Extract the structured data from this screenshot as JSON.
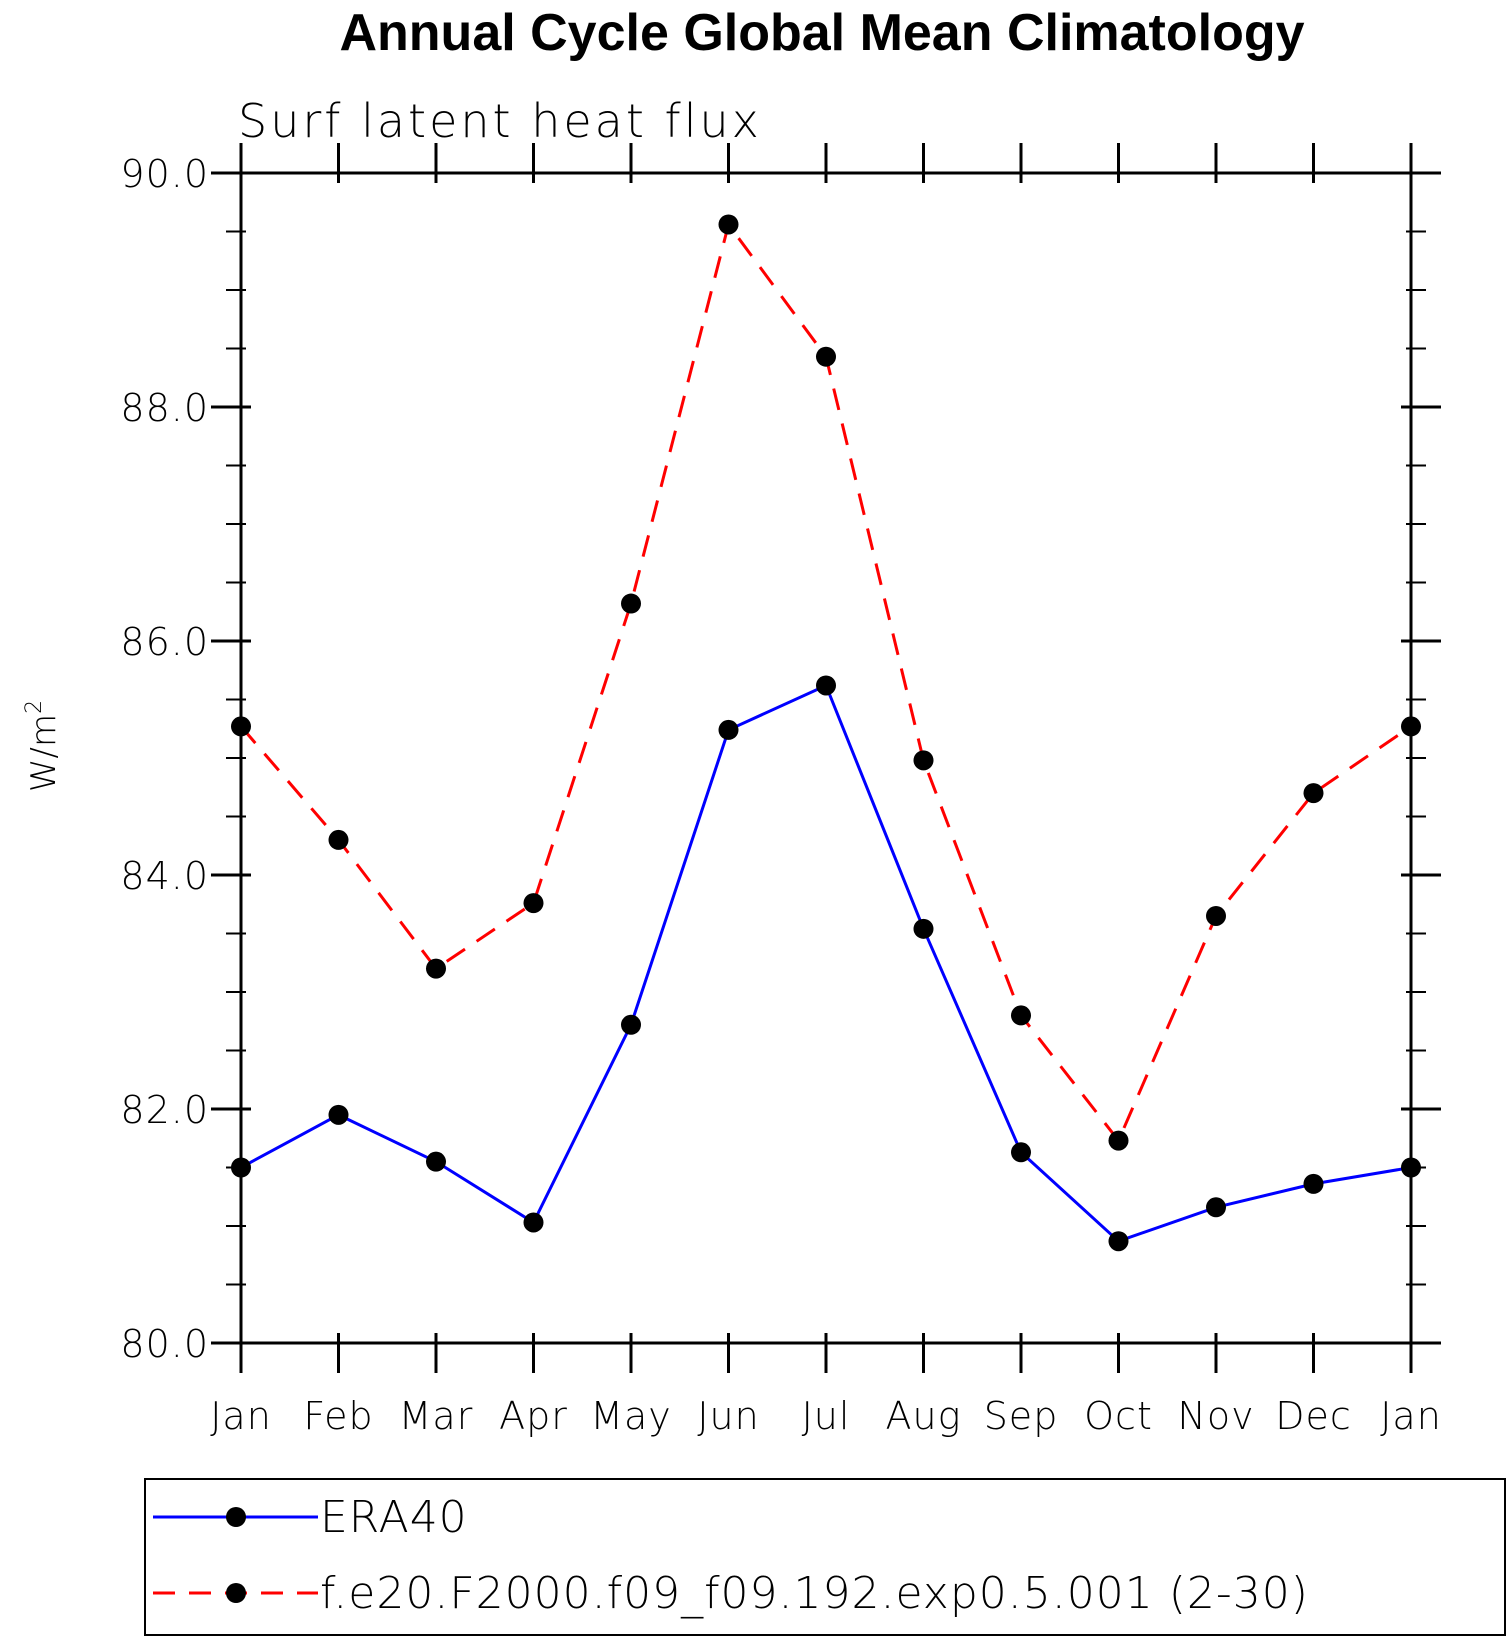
{
  "chart_data": {
    "type": "line",
    "title": "Annual Cycle Global Mean Climatology",
    "subtitle": "Surf latent heat flux",
    "ylabel_base": "W/m",
    "ylabel_sup": "2",
    "xlabel": "",
    "categories": [
      "Jan",
      "Feb",
      "Mar",
      "Apr",
      "May",
      "Jun",
      "Jul",
      "Aug",
      "Sep",
      "Oct",
      "Nov",
      "Dec",
      "Jan"
    ],
    "ylim": [
      80.0,
      90.0
    ],
    "yticks": [
      80.0,
      82.0,
      84.0,
      86.0,
      88.0,
      90.0
    ],
    "ytick_labels": [
      "80.0",
      "82.0",
      "84.0",
      "86.0",
      "88.0",
      "90.0"
    ],
    "grid": false,
    "legend_position": "bottom",
    "series": [
      {
        "name": "ERA40",
        "color": "#0000ff",
        "dash": "solid",
        "values": [
          81.5,
          81.95,
          81.55,
          81.03,
          82.72,
          85.24,
          85.62,
          83.54,
          81.63,
          80.87,
          81.16,
          81.36,
          81.5
        ]
      },
      {
        "name": "f.e20.F2000.f09_f09.192.exp0.5.001 (2-30)",
        "color": "#ff0000",
        "dash": "dashed",
        "values": [
          85.27,
          84.3,
          83.2,
          83.76,
          86.32,
          89.56,
          88.43,
          84.98,
          82.8,
          81.73,
          83.65,
          84.7,
          85.27
        ]
      }
    ]
  }
}
